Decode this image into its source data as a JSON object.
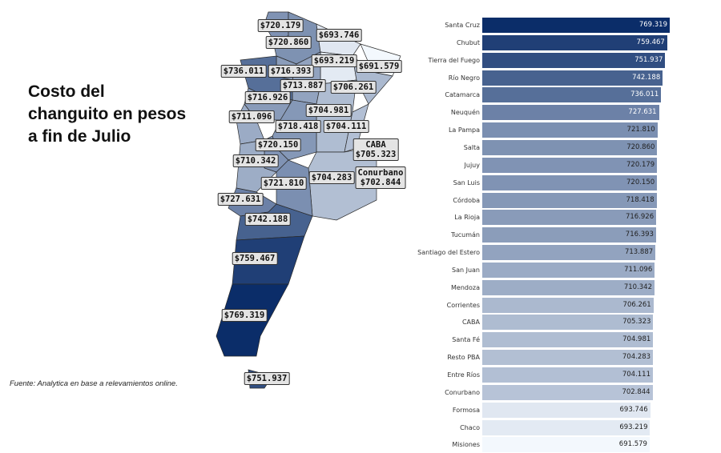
{
  "title": "Costo del\nchanguito en pesos\na fin de Julio",
  "source": "Fuente: Analytica en base a relevamientos online.",
  "map_labels": [
    {
      "value": "$720.179"
    },
    {
      "value": "$693.746"
    },
    {
      "value": "$720.860"
    },
    {
      "value": "$693.219"
    },
    {
      "value": "$691.579"
    },
    {
      "value": "$736.011"
    },
    {
      "value": "$716.393"
    },
    {
      "value": "$713.887"
    },
    {
      "value": "$706.261"
    },
    {
      "value": "$716.926"
    },
    {
      "value": "$704.981"
    },
    {
      "value": "$711.096"
    },
    {
      "value": "$718.418"
    },
    {
      "value": "$704.111"
    },
    {
      "name": "CABA",
      "value": "$705.323"
    },
    {
      "value": "$720.150"
    },
    {
      "value": "$710.342"
    },
    {
      "value": "$704.283"
    },
    {
      "name": "Conurbano",
      "value": "$702.844"
    },
    {
      "value": "$721.810"
    },
    {
      "value": "$727.631"
    },
    {
      "value": "$742.188"
    },
    {
      "value": "$759.467"
    },
    {
      "value": "$769.319"
    },
    {
      "value": "$751.937"
    }
  ],
  "chart_data": {
    "type": "bar",
    "orientation": "horizontal",
    "categories": [
      "Santa Cruz",
      "Chubut",
      "Tierra del Fuego",
      "Río Negro",
      "Catamarca",
      "Neuquén",
      "La Pampa",
      "Salta",
      "Jujuy",
      "San Luis",
      "Córdoba",
      "La Rioja",
      "Tucumán",
      "Santiago del Estero",
      "San Juan",
      "Mendoza",
      "Corrientes",
      "CABA",
      "Santa Fé",
      "Resto PBA",
      "Entre Ríos",
      "Conurbano",
      "Formosa",
      "Chaco",
      "Misiones"
    ],
    "values": [
      769.319,
      759.467,
      751.937,
      742.188,
      736.011,
      727.631,
      721.81,
      720.86,
      720.179,
      720.15,
      718.418,
      716.926,
      716.393,
      713.887,
      711.096,
      710.342,
      706.261,
      705.323,
      704.981,
      704.283,
      704.111,
      702.844,
      693.746,
      693.219,
      691.579
    ],
    "value_labels": [
      "769.319",
      "759.467",
      "751.937",
      "742.188",
      "736.011",
      "727.631",
      "721.810",
      "720.860",
      "720.179",
      "720.150",
      "718.418",
      "716.926",
      "716.393",
      "713.887",
      "711.096",
      "710.342",
      "706.261",
      "705.323",
      "704.981",
      "704.283",
      "704.111",
      "702.844",
      "693.746",
      "693.219",
      "691.579"
    ],
    "color_scale": [
      "#f3f8fd",
      "#0b2d69"
    ],
    "grid": false,
    "legend": "none"
  }
}
